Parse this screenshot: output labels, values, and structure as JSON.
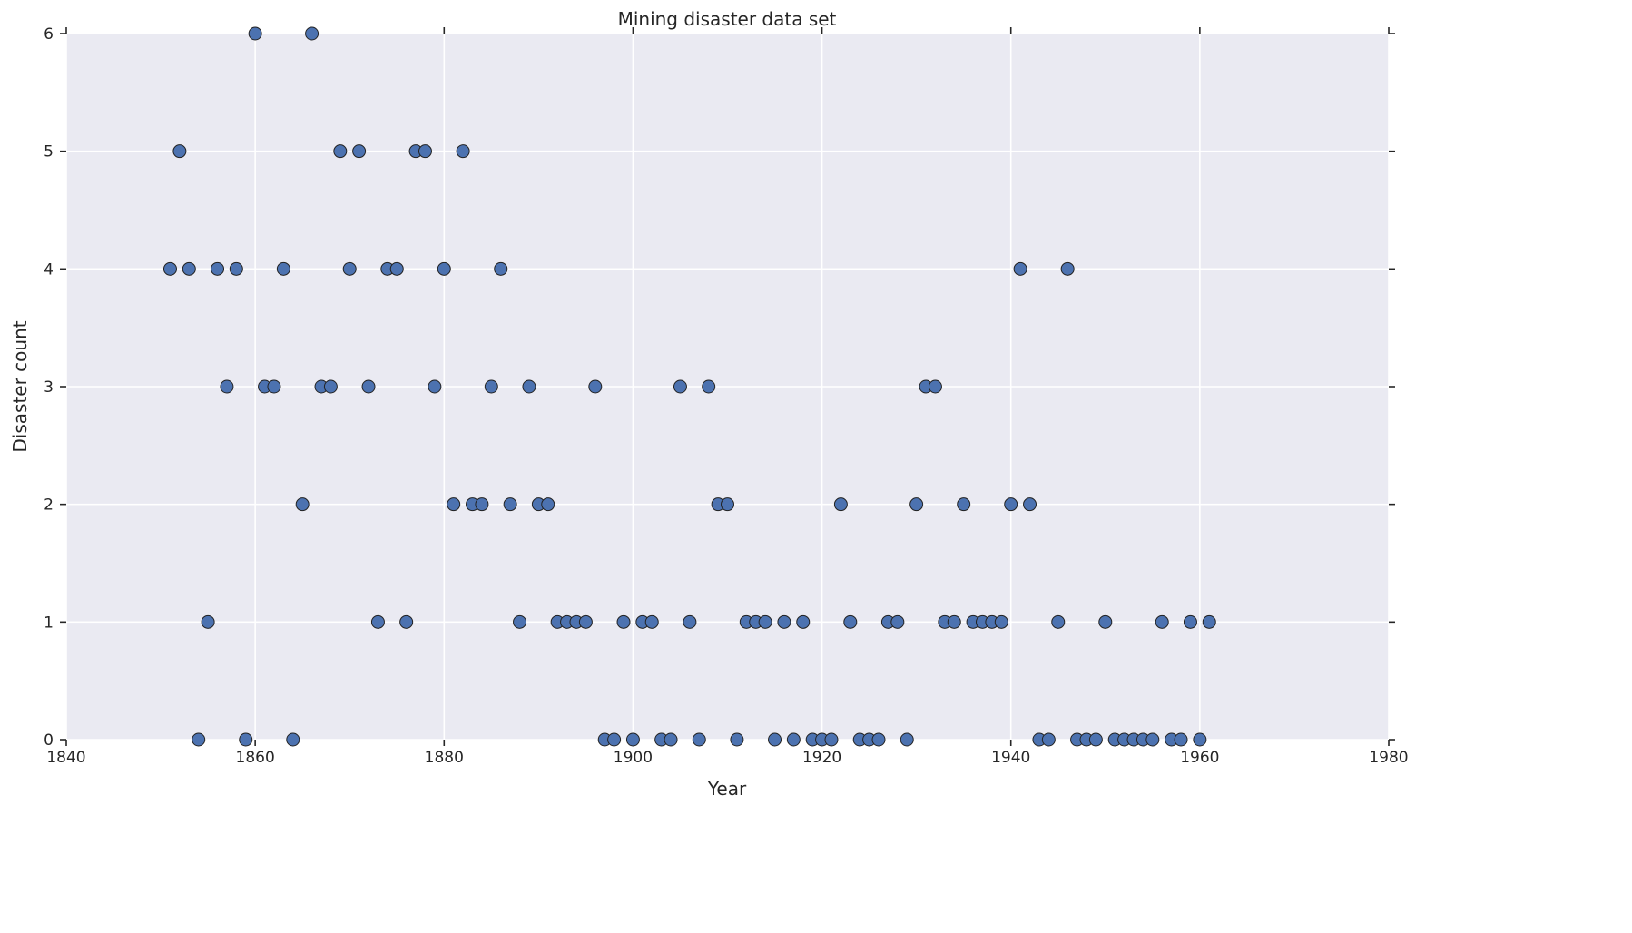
{
  "chart_data": {
    "type": "scatter",
    "title": "Mining disaster data set",
    "xlabel": "Year",
    "ylabel": "Disaster count",
    "xlim": [
      1840,
      1980
    ],
    "ylim": [
      0,
      6
    ],
    "xticks": [
      "1840",
      "1860",
      "1880",
      "1900",
      "1920",
      "1940",
      "1960",
      "1980"
    ],
    "yticks": [
      "0",
      "1",
      "2",
      "3",
      "4",
      "5",
      "6"
    ],
    "grid": true,
    "marker_color": "#4c72b0",
    "background_color": "#eaeaf2",
    "x": [
      1851,
      1852,
      1853,
      1854,
      1855,
      1856,
      1857,
      1858,
      1859,
      1860,
      1861,
      1862,
      1863,
      1864,
      1865,
      1866,
      1867,
      1868,
      1869,
      1870,
      1871,
      1872,
      1873,
      1874,
      1875,
      1876,
      1877,
      1878,
      1879,
      1880,
      1881,
      1882,
      1883,
      1884,
      1885,
      1886,
      1887,
      1888,
      1889,
      1890,
      1891,
      1892,
      1893,
      1894,
      1895,
      1896,
      1897,
      1898,
      1899,
      1900,
      1901,
      1902,
      1903,
      1904,
      1905,
      1906,
      1907,
      1908,
      1909,
      1910,
      1911,
      1912,
      1913,
      1914,
      1915,
      1916,
      1917,
      1918,
      1919,
      1920,
      1921,
      1922,
      1923,
      1924,
      1925,
      1926,
      1927,
      1928,
      1929,
      1930,
      1931,
      1932,
      1933,
      1934,
      1935,
      1936,
      1937,
      1938,
      1939,
      1940,
      1941,
      1942,
      1943,
      1944,
      1945,
      1946,
      1947,
      1948,
      1949,
      1950,
      1951,
      1952,
      1953,
      1954,
      1955,
      1956,
      1957,
      1958,
      1959,
      1960,
      1961
    ],
    "y": [
      4,
      5,
      4,
      0,
      1,
      4,
      3,
      4,
      0,
      6,
      3,
      3,
      4,
      0,
      2,
      6,
      3,
      3,
      5,
      4,
      5,
      3,
      1,
      4,
      4,
      1,
      5,
      5,
      3,
      4,
      2,
      5,
      2,
      2,
      3,
      4,
      2,
      1,
      3,
      2,
      2,
      1,
      1,
      1,
      1,
      3,
      0,
      0,
      1,
      0,
      1,
      1,
      0,
      0,
      3,
      1,
      0,
      3,
      2,
      2,
      0,
      1,
      1,
      1,
      0,
      1,
      0,
      1,
      0,
      0,
      0,
      2,
      1,
      0,
      0,
      0,
      1,
      1,
      0,
      2,
      3,
      3,
      1,
      1,
      2,
      1,
      1,
      1,
      1,
      2,
      4,
      2,
      0,
      0,
      1,
      4,
      0,
      0,
      0,
      1,
      0,
      0,
      0,
      0,
      0,
      1,
      0,
      0,
      1,
      0,
      1
    ]
  }
}
